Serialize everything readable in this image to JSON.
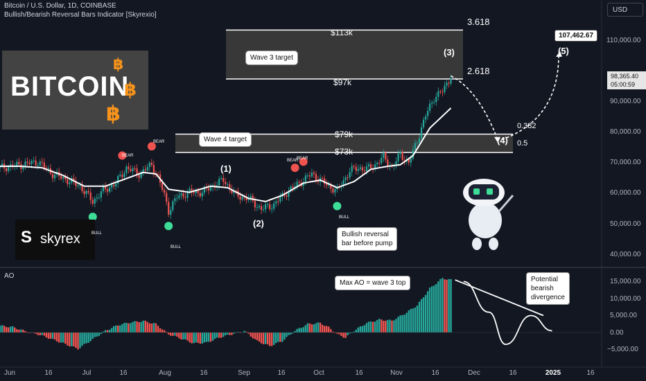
{
  "header": {
    "title": "Bitcoin / U.S. Dollar, 1D, COINBASE",
    "indicator": "Bullish/Bearish Reversal Bars Indicator [Skyrexio]",
    "currency_button": "USD"
  },
  "logo": {
    "text": "BITCOIN",
    "symbol": "฿"
  },
  "brand": {
    "text": "skyrex",
    "mark": "S"
  },
  "price_badge": {
    "price": "98,365.40",
    "countdown": "05:00:59"
  },
  "target_badge": "107,462.67",
  "levels": {
    "l113": "$113k",
    "l97": "$97k",
    "l79": "$79k",
    "l73": "$73k",
    "f3618": "3.618",
    "f2618": "2.618",
    "f0382": "0.382",
    "f05": "0.5"
  },
  "callouts": {
    "wave3": "Wave 3 target",
    "wave4": "Wave 4 target",
    "reversal_line1": "Bullish reversal",
    "reversal_line2": "bar before pump",
    "maxao": "Max AO = wave 3 top",
    "div_line1": "Potential",
    "div_line2": "bearish",
    "div_line3": "divergence"
  },
  "waves": {
    "w1": "(1)",
    "w2": "(2)",
    "w3": "(3)",
    "w4": "(4)",
    "w5": "(5)"
  },
  "signals": {
    "bull": "BULL",
    "bear": "BEAR"
  },
  "ao_label": "AO",
  "colors": {
    "up": "#26a69a",
    "down": "#ef5350",
    "background": "#131722",
    "box": "#434343",
    "btc_orange": "#f7931a"
  },
  "chart_data": [
    {
      "type": "line",
      "title": "Bitcoin / U.S. Dollar, 1D, COINBASE",
      "xlabel": "",
      "ylabel": "",
      "x_ticks": [
        "Jun",
        "16",
        "Jul",
        "16",
        "Aug",
        "16",
        "Sep",
        "16",
        "Oct",
        "16",
        "Nov",
        "16",
        "Dec",
        "16",
        "2025",
        "16"
      ],
      "y_ticks": [
        "40,000.00",
        "50,000.00",
        "60,000.00",
        "70,000.00",
        "80,000.00",
        "90,000.00",
        "110,000.00"
      ],
      "ylim": [
        37000,
        117000
      ],
      "candle_close_anchors": [
        [
          0,
          68000
        ],
        [
          10,
          69000
        ],
        [
          18,
          70000
        ],
        [
          25,
          66000
        ],
        [
          32,
          64000
        ],
        [
          38,
          62000
        ],
        [
          44,
          57000
        ],
        [
          48,
          60000
        ],
        [
          55,
          63000
        ],
        [
          60,
          68000
        ],
        [
          66,
          66000
        ],
        [
          72,
          69000
        ],
        [
          75,
          65000
        ],
        [
          78,
          59000
        ],
        [
          80,
          54000
        ],
        [
          84,
          58500
        ],
        [
          90,
          60000
        ],
        [
          96,
          60000
        ],
        [
          102,
          62500
        ],
        [
          106,
          64000
        ],
        [
          112,
          59000
        ],
        [
          118,
          58000
        ],
        [
          124,
          54500
        ],
        [
          130,
          56000
        ],
        [
          136,
          60000
        ],
        [
          142,
          63000
        ],
        [
          148,
          66000
        ],
        [
          152,
          64000
        ],
        [
          156,
          62000
        ],
        [
          160,
          60500
        ],
        [
          166,
          67000
        ],
        [
          170,
          68000
        ],
        [
          174,
          67500
        ],
        [
          178,
          69000
        ],
        [
          182,
          71500
        ],
        [
          186,
          68000
        ],
        [
          190,
          72500
        ],
        [
          194,
          69500
        ],
        [
          198,
          77000
        ],
        [
          202,
          85000
        ],
        [
          206,
          91000
        ],
        [
          210,
          93000
        ],
        [
          214,
          98000
        ]
      ],
      "ma_anchors": [
        [
          0,
          68500
        ],
        [
          10,
          68500
        ],
        [
          20,
          68000
        ],
        [
          30,
          65500
        ],
        [
          40,
          62000
        ],
        [
          50,
          62000
        ],
        [
          60,
          64500
        ],
        [
          68,
          66500
        ],
        [
          74,
          66000
        ],
        [
          80,
          61000
        ],
        [
          90,
          60000
        ],
        [
          100,
          62000
        ],
        [
          108,
          61500
        ],
        [
          118,
          58000
        ],
        [
          126,
          57000
        ],
        [
          134,
          59000
        ],
        [
          144,
          63000
        ],
        [
          152,
          64000
        ],
        [
          160,
          61500
        ],
        [
          168,
          63500
        ],
        [
          176,
          67500
        ],
        [
          184,
          68500
        ],
        [
          190,
          69000
        ],
        [
          196,
          72000
        ],
        [
          204,
          81000
        ],
        [
          214,
          87500
        ]
      ],
      "bull_signal_bars": [
        44,
        80,
        160
      ],
      "bear_signal_bars": [
        58,
        72,
        140,
        144
      ],
      "projection": [
        [
          "now",
          98000
        ],
        [
          "wave 4",
          79000
        ],
        [
          "wave 5",
          107462.67
        ]
      ],
      "level_prices": [
        113000,
        97000,
        79000,
        73000
      ]
    },
    {
      "type": "bar",
      "title": "AO",
      "xlabel": "",
      "ylabel": "",
      "y_ticks": [
        "15,000.00",
        "10,000.00",
        "5,000.00",
        "0.00",
        "−5,000.00"
      ],
      "ylim": [
        -6500,
        17500
      ],
      "anchors": [
        [
          0,
          2000
        ],
        [
          6,
          1600
        ],
        [
          12,
          400
        ],
        [
          18,
          -500
        ],
        [
          24,
          -1800
        ],
        [
          30,
          -3200
        ],
        [
          37,
          -4800
        ],
        [
          44,
          -2000
        ],
        [
          50,
          500
        ],
        [
          56,
          2200
        ],
        [
          62,
          3000
        ],
        [
          68,
          3400
        ],
        [
          74,
          2500
        ],
        [
          80,
          -500
        ],
        [
          86,
          -1800
        ],
        [
          92,
          -3200
        ],
        [
          98,
          -3000
        ],
        [
          104,
          -1500
        ],
        [
          110,
          -500
        ],
        [
          116,
          500
        ],
        [
          122,
          -2500
        ],
        [
          128,
          -4000
        ],
        [
          134,
          -2500
        ],
        [
          140,
          500
        ],
        [
          146,
          2500
        ],
        [
          152,
          2800
        ],
        [
          156,
          1500
        ],
        [
          160,
          -500
        ],
        [
          164,
          -1500
        ],
        [
          168,
          500
        ],
        [
          174,
          2800
        ],
        [
          180,
          3800
        ],
        [
          186,
          3500
        ],
        [
          192,
          5500
        ],
        [
          198,
          8000
        ],
        [
          204,
          13000
        ],
        [
          210,
          16000
        ],
        [
          214,
          15500
        ]
      ],
      "divergence_projection": [
        [
          220,
          15000
        ],
        [
          232,
          6000
        ],
        [
          240,
          -3500
        ],
        [
          252,
          5000
        ],
        [
          262,
          500
        ]
      ]
    }
  ]
}
